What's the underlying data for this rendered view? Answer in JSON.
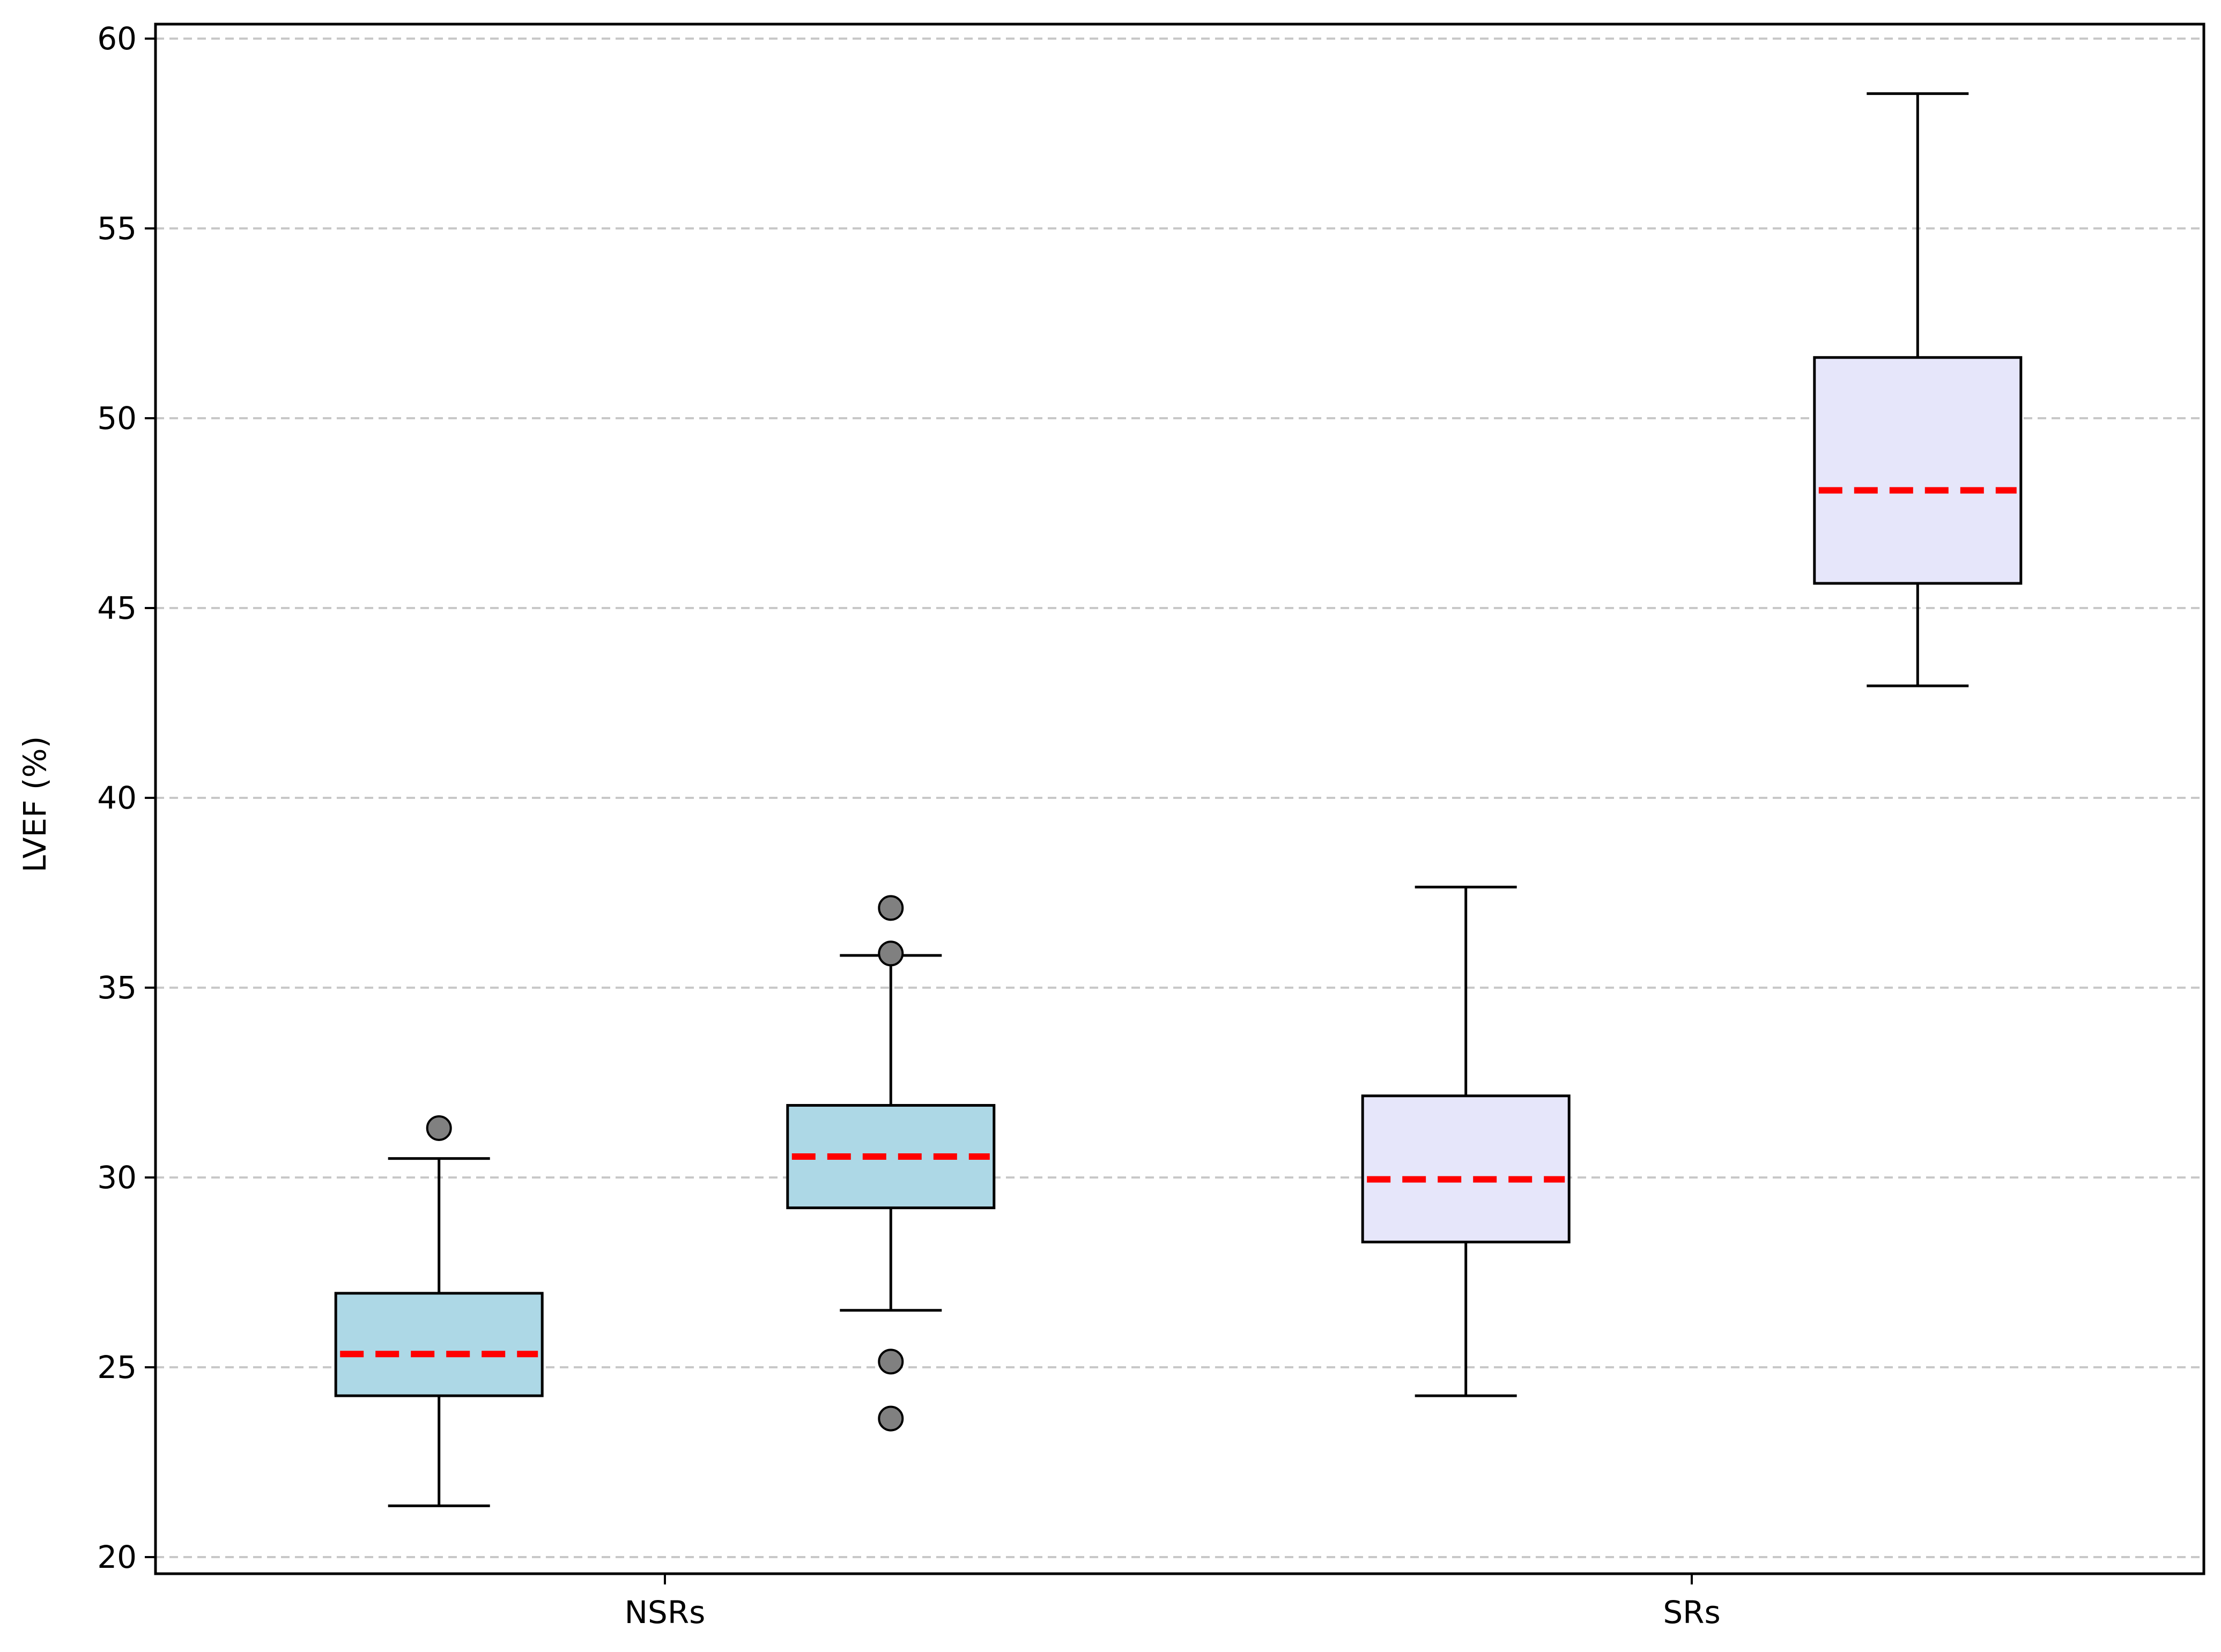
{
  "chart_data": {
    "type": "box",
    "title": "",
    "xlabel": "",
    "ylabel": "LVEF (%)",
    "ylim": [
      20,
      60
    ],
    "yticks": [
      20,
      25,
      30,
      35,
      40,
      45,
      50,
      55,
      60
    ],
    "grid": "y-dashed",
    "categories": [
      "NSRs",
      "SRs"
    ],
    "boxes": [
      {
        "category": "NSRs",
        "position": 0.78,
        "fill": "#add8e6",
        "whisker_low": 21.35,
        "q1": 24.25,
        "median": 25.35,
        "q3": 26.95,
        "whisker_high": 30.5,
        "outliers": [
          31.3
        ]
      },
      {
        "category": "NSRs",
        "position": 1.22,
        "fill": "#add8e6",
        "whisker_low": 26.5,
        "q1": 29.2,
        "median": 30.55,
        "q3": 31.9,
        "whisker_high": 35.85,
        "outliers": [
          37.1,
          35.9,
          25.15,
          23.65
        ]
      },
      {
        "category": "SRs",
        "position": 1.78,
        "fill": "#e6e6fa",
        "whisker_low": 24.25,
        "q1": 28.3,
        "median": 29.95,
        "q3": 32.15,
        "whisker_high": 37.65,
        "outliers": []
      },
      {
        "category": "SRs",
        "position": 2.22,
        "fill": "#e6e6fa",
        "whisker_low": 42.95,
        "q1": 45.65,
        "median": 48.1,
        "q3": 51.6,
        "whisker_high": 58.55,
        "outliers": []
      }
    ],
    "median_color": "#ff0000",
    "outlier_color": "#808080"
  }
}
